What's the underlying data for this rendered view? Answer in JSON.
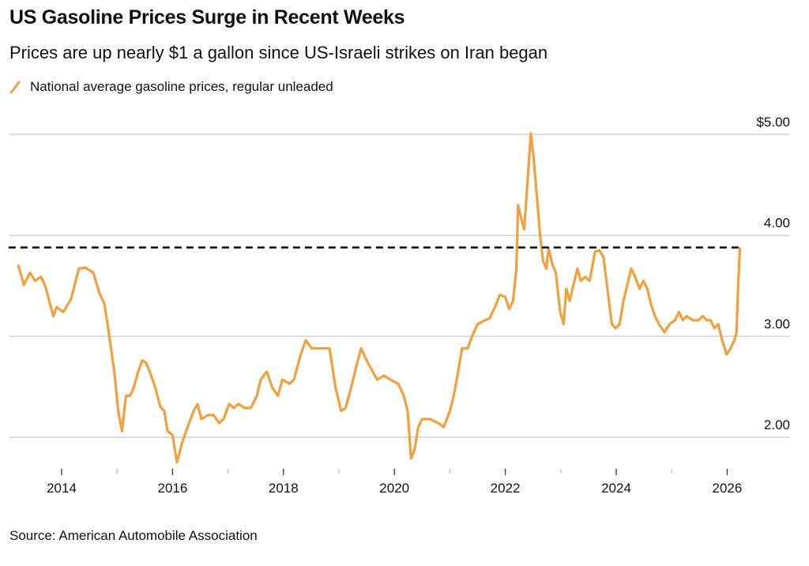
{
  "header": {
    "title": "US Gasoline Prices Surge in Recent Weeks",
    "subtitle": "Prices are up nearly $1 a gallon since US-Israeli strikes on Iran began"
  },
  "footer": {
    "source": "Source: American Automobile Association"
  },
  "colors": {
    "series": "#F2A03D",
    "reference": "#000000",
    "grid": "#D0D0D0"
  },
  "chart_data": {
    "type": "line",
    "title": "US Gasoline Prices Surge in Recent Weeks",
    "subtitle": "Prices are up nearly $1 a gallon since US-Israeli strikes on Iran began",
    "xlabel": "",
    "ylabel": "",
    "xlim": [
      2013.2,
      2026.3
    ],
    "ylim": [
      1.7,
      5.0
    ],
    "grid": true,
    "legend_position": "top-left",
    "y_ticks": [
      {
        "value": 5,
        "label": "$5.00"
      },
      {
        "value": 4,
        "label": "4.00"
      },
      {
        "value": 3,
        "label": "3.00"
      },
      {
        "value": 2,
        "label": "2.00"
      }
    ],
    "x_major_ticks": [
      {
        "value": 2014,
        "label": "2014"
      },
      {
        "value": 2016,
        "label": "2016"
      },
      {
        "value": 2018,
        "label": "2018"
      },
      {
        "value": 2020,
        "label": "2020"
      },
      {
        "value": 2022,
        "label": "2022"
      },
      {
        "value": 2024,
        "label": "2024"
      },
      {
        "value": 2026,
        "label": "2026"
      }
    ],
    "x_minor_ticks": [
      2015,
      2017,
      2019,
      2021,
      2023,
      2025
    ],
    "reference_line": {
      "value": 3.88,
      "style": "dashed",
      "x_range": [
        2013.2,
        2026.23
      ]
    },
    "series": [
      {
        "name": "National average gasoline prices, regular unleaded",
        "points": [
          [
            2013.22,
            3.7
          ],
          [
            2013.32,
            3.51
          ],
          [
            2013.43,
            3.63
          ],
          [
            2013.52,
            3.55
          ],
          [
            2013.63,
            3.59
          ],
          [
            2013.71,
            3.49
          ],
          [
            2013.78,
            3.34
          ],
          [
            2013.85,
            3.2
          ],
          [
            2013.91,
            3.29
          ],
          [
            2014.03,
            3.24
          ],
          [
            2014.17,
            3.37
          ],
          [
            2014.31,
            3.67
          ],
          [
            2014.43,
            3.68
          ],
          [
            2014.57,
            3.63
          ],
          [
            2014.68,
            3.43
          ],
          [
            2014.77,
            3.32
          ],
          [
            2014.85,
            3.04
          ],
          [
            2014.95,
            2.65
          ],
          [
            2015.02,
            2.26
          ],
          [
            2015.09,
            2.06
          ],
          [
            2015.16,
            2.41
          ],
          [
            2015.23,
            2.41
          ],
          [
            2015.3,
            2.49
          ],
          [
            2015.38,
            2.65
          ],
          [
            2015.45,
            2.76
          ],
          [
            2015.52,
            2.74
          ],
          [
            2015.59,
            2.65
          ],
          [
            2015.69,
            2.49
          ],
          [
            2015.78,
            2.3
          ],
          [
            2015.85,
            2.26
          ],
          [
            2015.91,
            2.06
          ],
          [
            2016.0,
            2.02
          ],
          [
            2016.08,
            1.75
          ],
          [
            2016.17,
            1.94
          ],
          [
            2016.27,
            2.1
          ],
          [
            2016.38,
            2.26
          ],
          [
            2016.45,
            2.33
          ],
          [
            2016.52,
            2.18
          ],
          [
            2016.64,
            2.22
          ],
          [
            2016.74,
            2.22
          ],
          [
            2016.84,
            2.14
          ],
          [
            2016.92,
            2.18
          ],
          [
            2017.02,
            2.33
          ],
          [
            2017.1,
            2.29
          ],
          [
            2017.19,
            2.33
          ],
          [
            2017.3,
            2.29
          ],
          [
            2017.41,
            2.29
          ],
          [
            2017.52,
            2.41
          ],
          [
            2017.59,
            2.57
          ],
          [
            2017.7,
            2.65
          ],
          [
            2017.8,
            2.49
          ],
          [
            2017.9,
            2.41
          ],
          [
            2017.98,
            2.57
          ],
          [
            2018.11,
            2.53
          ],
          [
            2018.19,
            2.57
          ],
          [
            2018.3,
            2.8
          ],
          [
            2018.4,
            2.96
          ],
          [
            2018.51,
            2.88
          ],
          [
            2018.61,
            2.88
          ],
          [
            2018.72,
            2.88
          ],
          [
            2018.83,
            2.88
          ],
          [
            2018.94,
            2.49
          ],
          [
            2019.04,
            2.26
          ],
          [
            2019.12,
            2.29
          ],
          [
            2019.22,
            2.49
          ],
          [
            2019.32,
            2.72
          ],
          [
            2019.4,
            2.88
          ],
          [
            2019.5,
            2.76
          ],
          [
            2019.57,
            2.69
          ],
          [
            2019.69,
            2.57
          ],
          [
            2019.81,
            2.61
          ],
          [
            2019.93,
            2.57
          ],
          [
            2020.07,
            2.53
          ],
          [
            2020.17,
            2.41
          ],
          [
            2020.24,
            2.26
          ],
          [
            2020.3,
            1.79
          ],
          [
            2020.36,
            1.87
          ],
          [
            2020.43,
            2.1
          ],
          [
            2020.5,
            2.18
          ],
          [
            2020.64,
            2.18
          ],
          [
            2020.79,
            2.14
          ],
          [
            2020.89,
            2.1
          ],
          [
            2021.0,
            2.26
          ],
          [
            2021.07,
            2.41
          ],
          [
            2021.15,
            2.65
          ],
          [
            2021.22,
            2.88
          ],
          [
            2021.32,
            2.88
          ],
          [
            2021.4,
            3.0
          ],
          [
            2021.5,
            3.12
          ],
          [
            2021.6,
            3.15
          ],
          [
            2021.72,
            3.18
          ],
          [
            2021.83,
            3.31
          ],
          [
            2021.9,
            3.41
          ],
          [
            2022.0,
            3.39
          ],
          [
            2022.07,
            3.27
          ],
          [
            2022.14,
            3.35
          ],
          [
            2022.2,
            3.67
          ],
          [
            2022.23,
            4.3
          ],
          [
            2022.28,
            4.18
          ],
          [
            2022.34,
            4.06
          ],
          [
            2022.4,
            4.53
          ],
          [
            2022.43,
            4.77
          ],
          [
            2022.46,
            5.01
          ],
          [
            2022.51,
            4.77
          ],
          [
            2022.57,
            4.38
          ],
          [
            2022.63,
            3.99
          ],
          [
            2022.68,
            3.75
          ],
          [
            2022.74,
            3.67
          ],
          [
            2022.78,
            3.87
          ],
          [
            2022.85,
            3.71
          ],
          [
            2022.91,
            3.63
          ],
          [
            2022.99,
            3.24
          ],
          [
            2023.05,
            3.12
          ],
          [
            2023.1,
            3.47
          ],
          [
            2023.16,
            3.35
          ],
          [
            2023.23,
            3.51
          ],
          [
            2023.3,
            3.67
          ],
          [
            2023.36,
            3.55
          ],
          [
            2023.44,
            3.59
          ],
          [
            2023.52,
            3.55
          ],
          [
            2023.62,
            3.84
          ],
          [
            2023.7,
            3.85
          ],
          [
            2023.77,
            3.78
          ],
          [
            2023.85,
            3.43
          ],
          [
            2023.92,
            3.12
          ],
          [
            2023.99,
            3.08
          ],
          [
            2024.06,
            3.12
          ],
          [
            2024.13,
            3.35
          ],
          [
            2024.2,
            3.51
          ],
          [
            2024.27,
            3.67
          ],
          [
            2024.34,
            3.59
          ],
          [
            2024.42,
            3.47
          ],
          [
            2024.49,
            3.55
          ],
          [
            2024.56,
            3.47
          ],
          [
            2024.63,
            3.31
          ],
          [
            2024.7,
            3.2
          ],
          [
            2024.77,
            3.12
          ],
          [
            2024.87,
            3.04
          ],
          [
            2024.96,
            3.12
          ],
          [
            2025.06,
            3.16
          ],
          [
            2025.13,
            3.24
          ],
          [
            2025.2,
            3.16
          ],
          [
            2025.27,
            3.2
          ],
          [
            2025.38,
            3.16
          ],
          [
            2025.48,
            3.16
          ],
          [
            2025.56,
            3.2
          ],
          [
            2025.63,
            3.16
          ],
          [
            2025.7,
            3.16
          ],
          [
            2025.77,
            3.08
          ],
          [
            2025.84,
            3.12
          ],
          [
            2025.91,
            2.96
          ],
          [
            2025.99,
            2.82
          ],
          [
            2026.06,
            2.88
          ],
          [
            2026.13,
            2.96
          ],
          [
            2026.17,
            3.04
          ],
          [
            2026.2,
            3.51
          ],
          [
            2026.23,
            3.87
          ]
        ]
      }
    ]
  },
  "legend": {
    "items": [
      {
        "label": "National average gasoline prices, regular unleaded",
        "icon": "line-swatch-icon"
      }
    ]
  }
}
